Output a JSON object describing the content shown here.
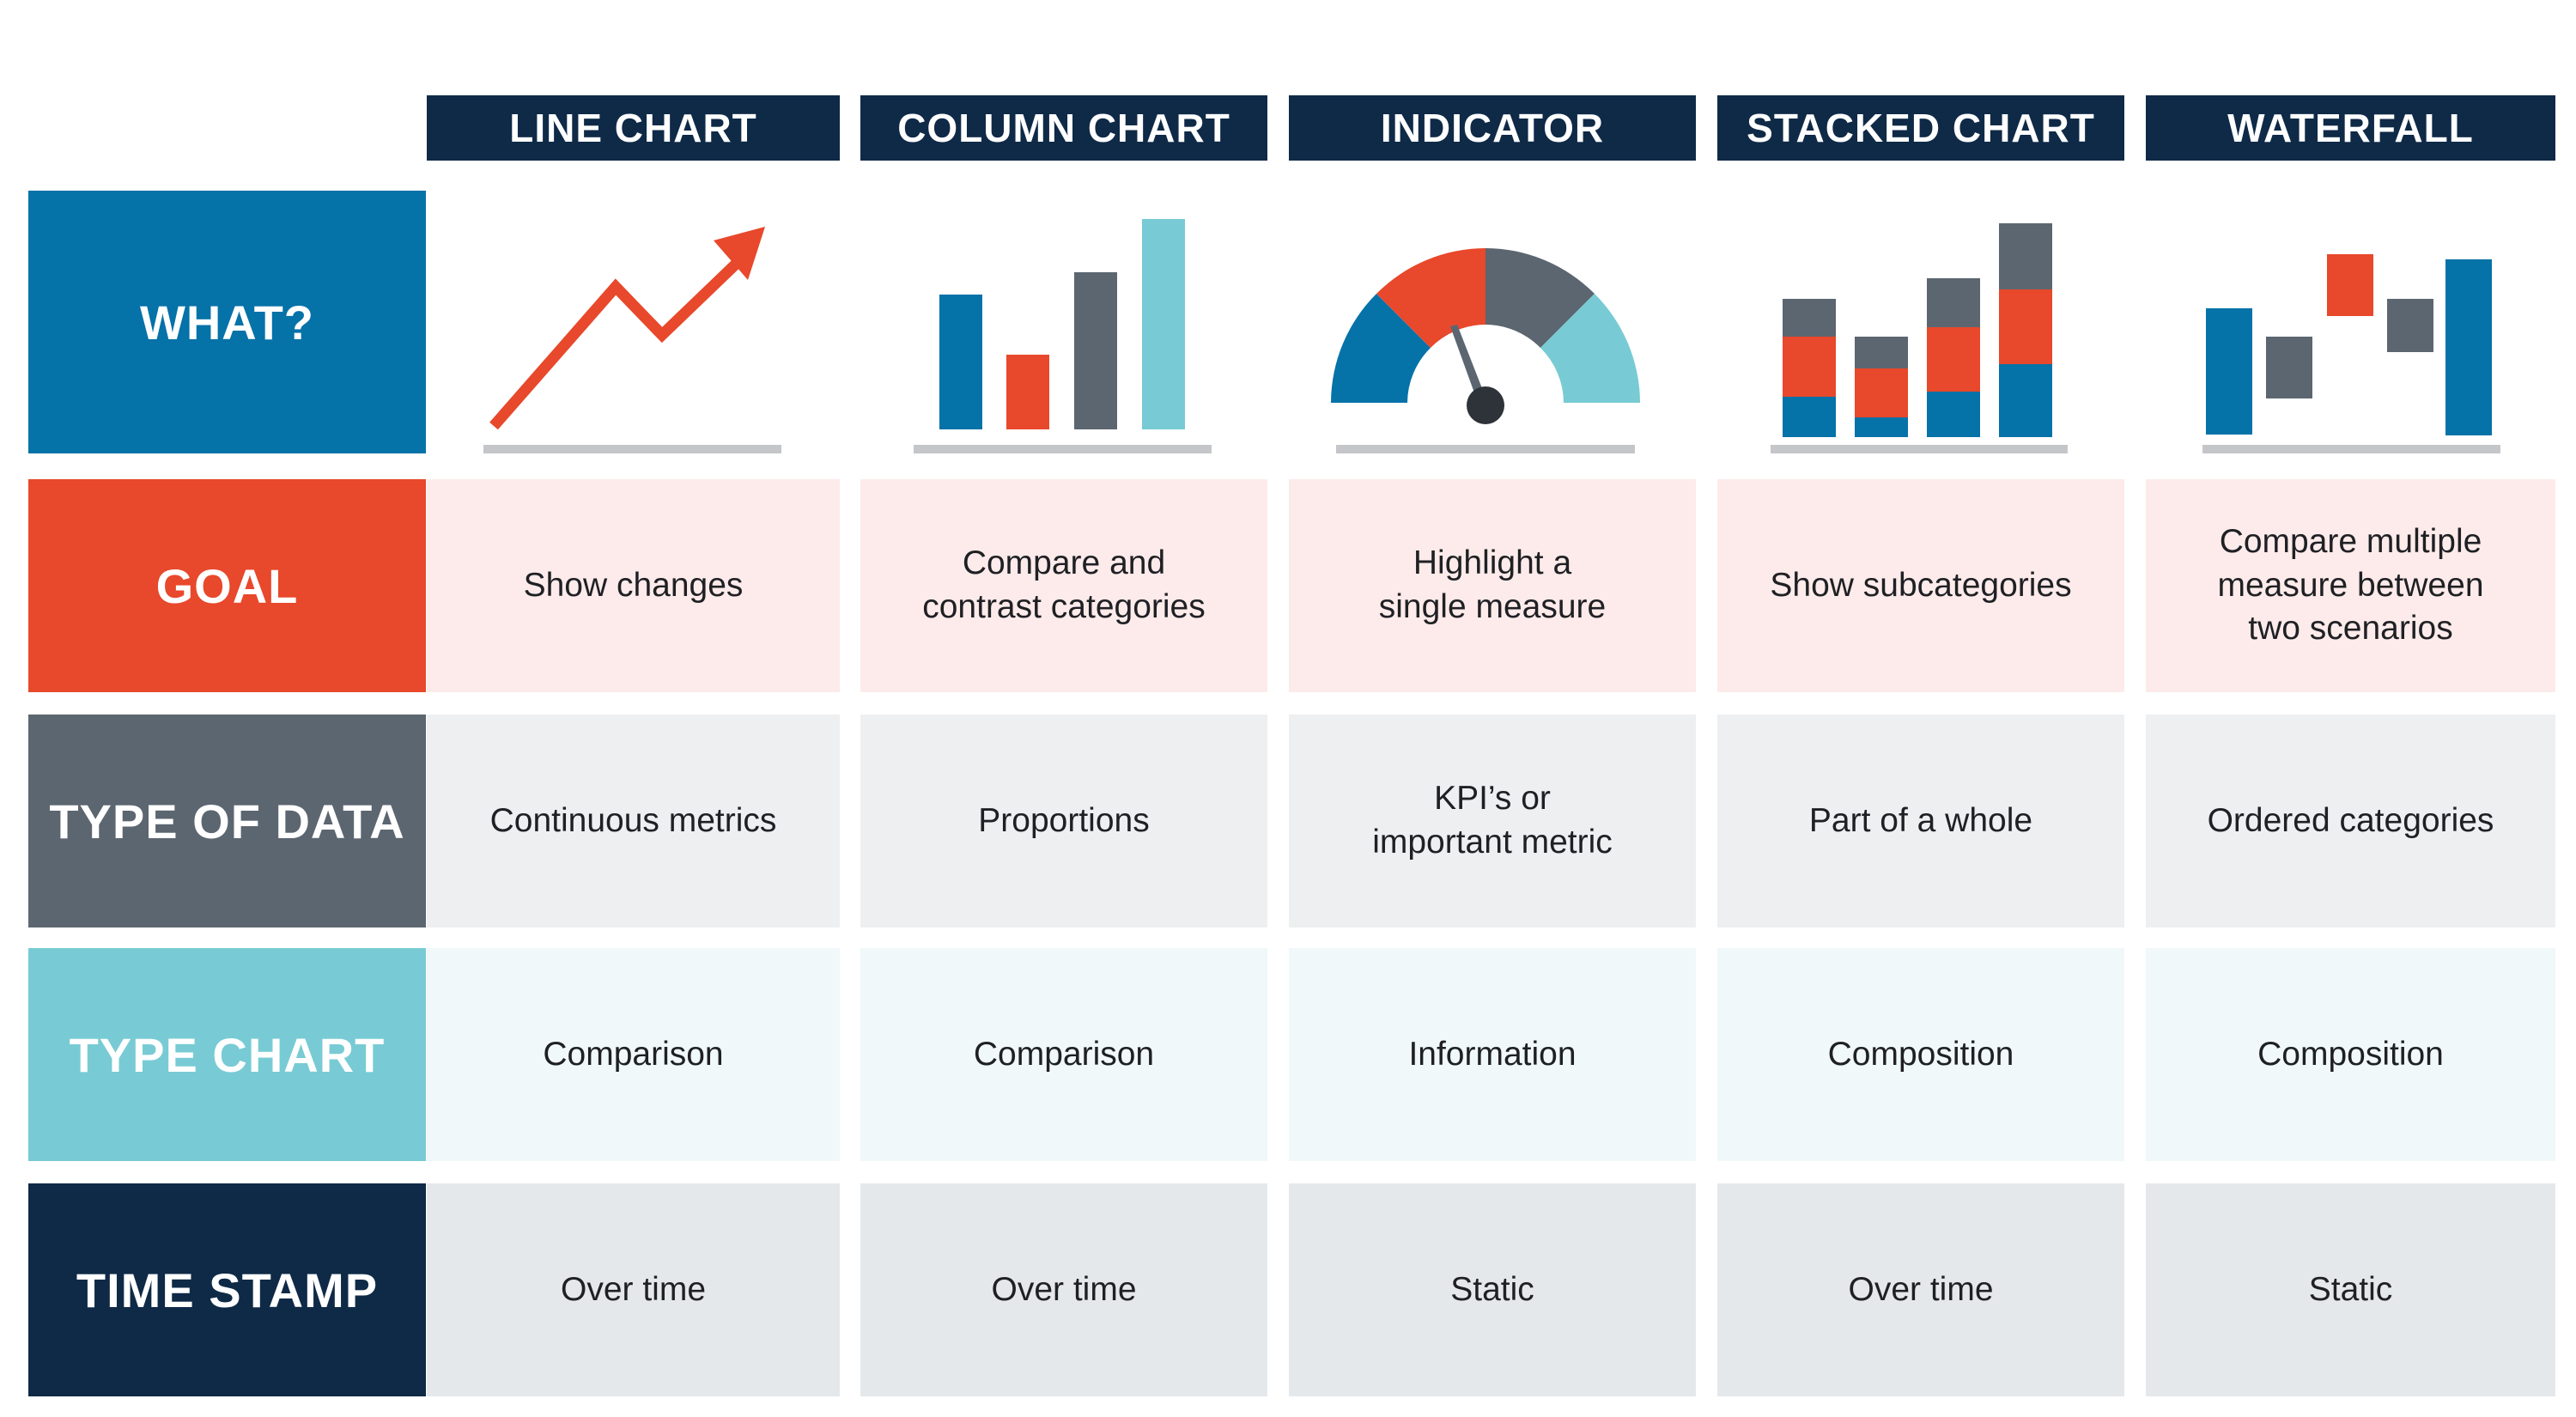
{
  "columns": [
    {
      "title": "LINE CHART",
      "goal": "Show changes",
      "type_of_data": "Continuous metrics",
      "type_chart": "Comparison",
      "time_stamp": "Over time"
    },
    {
      "title": "COLUMN CHART",
      "goal": "Compare and\ncontrast categories",
      "type_of_data": "Proportions",
      "type_chart": "Comparison",
      "time_stamp": "Over time"
    },
    {
      "title": "INDICATOR",
      "goal": "Highlight a\nsingle measure",
      "type_of_data": "KPI’s or\nimportant metric",
      "type_chart": "Information",
      "time_stamp": "Static"
    },
    {
      "title": "STACKED CHART",
      "goal": "Show subcategories",
      "type_of_data": "Part of a whole",
      "type_chart": "Composition",
      "time_stamp": "Over time"
    },
    {
      "title": "WATERFALL",
      "goal": "Compare multiple\nmeasure between\ntwo scenarios",
      "type_of_data": "Ordered categories",
      "type_chart": "Composition",
      "time_stamp": "Static"
    }
  ],
  "rows": {
    "what": "WHAT?",
    "goal": "GOAL",
    "type_of_data": "TYPE OF DATA",
    "type_chart": "TYPE CHART",
    "time_stamp": "TIME STAMP"
  },
  "colors": {
    "navy": "#0f2a47",
    "blue": "#0572a8",
    "red": "#e8482b",
    "slate": "#5c6670",
    "teal": "#78cbd4",
    "baseline_gray": "#c4c6c9"
  },
  "icons": [
    "line-chart-icon",
    "column-chart-icon",
    "gauge-indicator-icon",
    "stacked-chart-icon",
    "waterfall-chart-icon"
  ]
}
